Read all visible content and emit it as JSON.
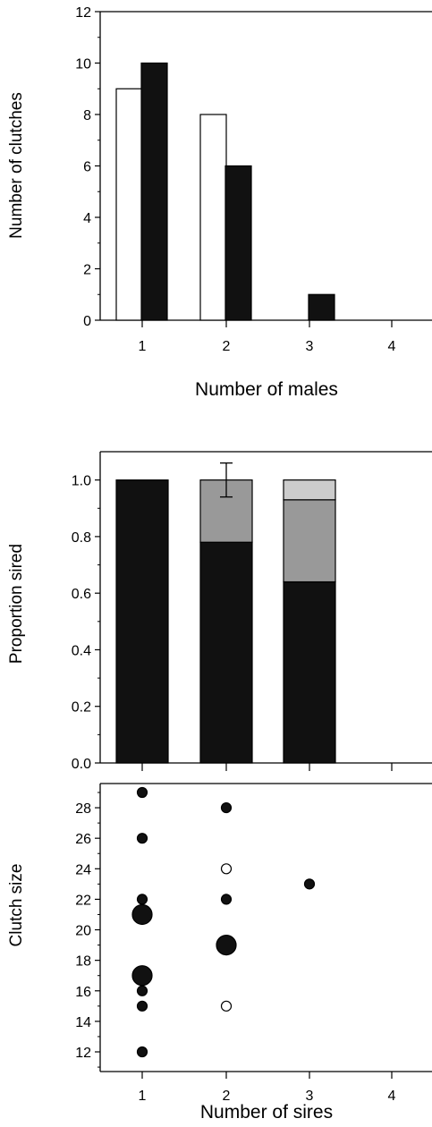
{
  "chart_data": [
    {
      "type": "bar",
      "title": "",
      "xlabel": "Number of males",
      "ylabel": "Number of clutches",
      "categories": [
        "1",
        "2",
        "3",
        "4"
      ],
      "ylim": [
        0,
        12
      ],
      "yticks": [
        "0",
        "2",
        "4",
        "6",
        "8",
        "10",
        "12"
      ],
      "series": [
        {
          "values": [
            9,
            8,
            0,
            0
          ],
          "color": "#ffffff"
        },
        {
          "values": [
            10,
            6,
            1,
            0
          ],
          "color": "#111111"
        }
      ]
    },
    {
      "type": "bar",
      "stacked": true,
      "title": "",
      "xlabel": "",
      "ylabel": "Proportion sired",
      "categories": [
        "1",
        "2",
        "3",
        "4"
      ],
      "ylim": [
        0,
        1.0
      ],
      "yticks": [
        "0.0",
        "0.2",
        "0.4",
        "0.6",
        "0.8",
        "1.0"
      ],
      "series": [
        {
          "values": [
            1.0,
            0.78,
            0.64,
            0
          ],
          "color": "#111111"
        },
        {
          "values": [
            0,
            0.22,
            0.29,
            0
          ],
          "color": "#999999"
        },
        {
          "values": [
            0,
            0,
            0.07,
            0
          ],
          "color": "#cccccc"
        }
      ],
      "error_bar": {
        "category": "2",
        "low": 0.94,
        "high": 1.06
      }
    },
    {
      "type": "scatter",
      "title": "",
      "xlabel": "Number of sires",
      "ylabel": "Clutch size",
      "xticks": [
        "1",
        "2",
        "3",
        "4"
      ],
      "ylim": [
        11,
        29.5
      ],
      "yticks": [
        "12",
        "14",
        "16",
        "18",
        "20",
        "22",
        "24",
        "26",
        "28"
      ],
      "points": [
        {
          "x": 1,
          "y": 29,
          "size": "small",
          "filled": true
        },
        {
          "x": 1,
          "y": 26,
          "size": "small",
          "filled": true
        },
        {
          "x": 1,
          "y": 22,
          "size": "small",
          "filled": true
        },
        {
          "x": 1,
          "y": 21,
          "size": "large",
          "filled": true
        },
        {
          "x": 1,
          "y": 17,
          "size": "large",
          "filled": true
        },
        {
          "x": 1,
          "y": 16,
          "size": "small",
          "filled": true
        },
        {
          "x": 1,
          "y": 15,
          "size": "small",
          "filled": true
        },
        {
          "x": 1,
          "y": 12,
          "size": "small",
          "filled": true
        },
        {
          "x": 2,
          "y": 28,
          "size": "small",
          "filled": true
        },
        {
          "x": 2,
          "y": 24,
          "size": "small",
          "filled": false
        },
        {
          "x": 2,
          "y": 22,
          "size": "small",
          "filled": true
        },
        {
          "x": 2,
          "y": 19,
          "size": "large",
          "filled": true
        },
        {
          "x": 2,
          "y": 15,
          "size": "small",
          "filled": false
        },
        {
          "x": 3,
          "y": 23,
          "size": "small",
          "filled": true
        }
      ]
    }
  ]
}
